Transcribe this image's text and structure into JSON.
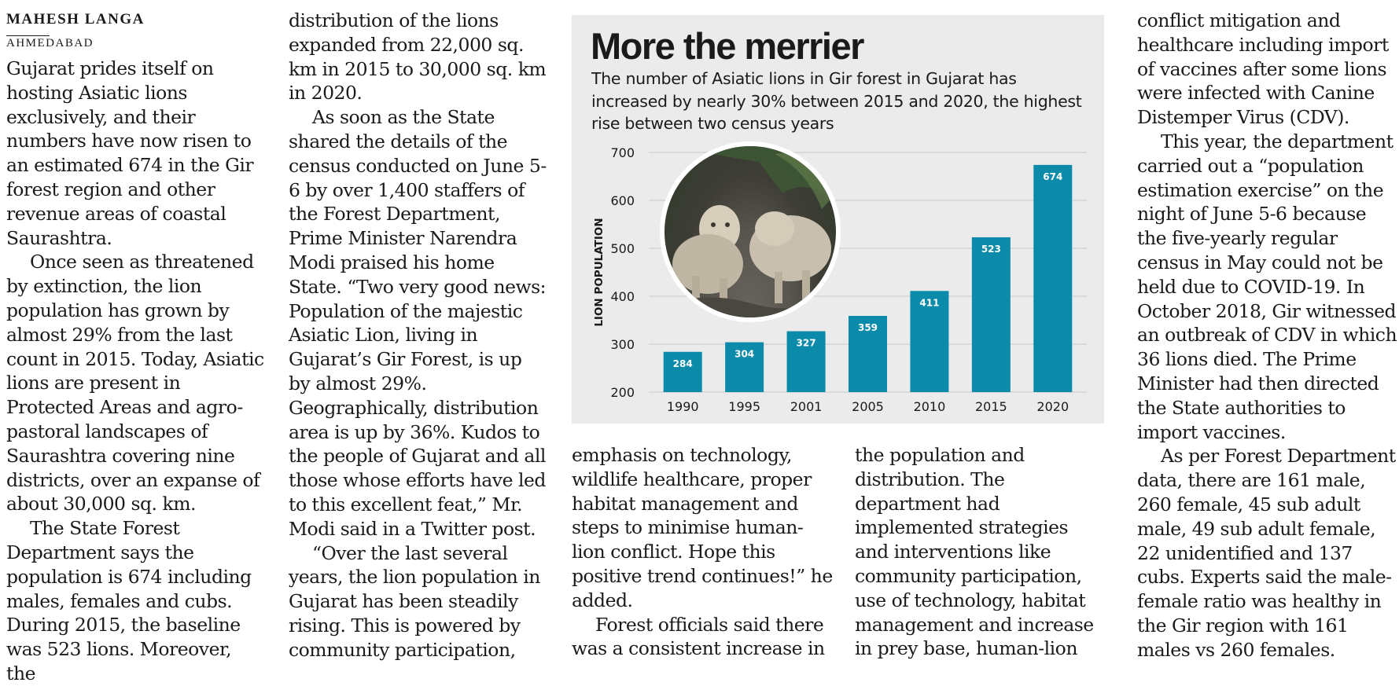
{
  "byline": {
    "author": "MAHESH LANGA",
    "dateline": "AHMEDABAD"
  },
  "article": {
    "col1": [
      "Gujarat prides itself on hosting Asiatic lions exclusively, and their numbers have now risen to an estimated 674 in the Gir forest region and other revenue areas of coastal Saurashtra.",
      "Once seen as threatened by extinction, the lion population has grown by almost 29% from the last count in 2015. Today, Asiatic lions are present in Protected Areas and agro-pastoral landscapes of Saurashtra covering nine districts, over an expanse of about 30,000 sq. km.",
      "The State Forest Department says the population is 674 including males, females and cubs. During 2015, the baseline was 523 lions. Moreover, the"
    ],
    "col2": [
      "distribution of the lions expanded from 22,000 sq. km in 2015 to 30,000 sq. km in 2020.",
      "As soon as the State shared the details of the census conducted on June 5-6 by over 1,400 staffers of the Forest Department, Prime Minister Narendra Modi praised his home State. “Two very good news: Population of the majestic Asiatic Lion, living in Gujarat’s Gir Forest, is up by almost 29%. Geographically, distribution area is up by 36%. Kudos to the people of Gujarat and all those whose efforts have led to this excellent feat,” Mr. Modi said in a Twitter post.",
      "“Over the last several years, the lion population in Gujarat has been steadily rising. This is powered by community participation,"
    ],
    "col3": [
      "emphasis on technology, wildlife healthcare, proper habitat management and steps to minimise human-lion conflict. Hope this positive trend continues!” he added.",
      "Forest officials said there was a consistent increase in"
    ],
    "col4": [
      "the population and distribution. The department had implemented strategies and interventions like community participation, use of technology, habitat management and increase in prey base, human-lion"
    ],
    "col5": [
      "conflict mitigation and healthcare including import of vaccines after some lions were infected with Canine Distemper Virus (CDV).",
      "This year, the department carried out a “population estimation exercise” on the night of June 5-6 because the five-yearly regular census in May could not be held due to COVID-19. In October 2018, Gir witnessed an outbreak of CDV in which 36 lions died. The Prime Minister had then directed the State authorities to import vaccines.",
      "As per Forest Department data, there are 161 male, 260 female, 45 sub adult male, 49 sub adult female, 22 unidentified and 137 cubs. Experts said the male-female ratio was healthy in the Gir region with 161 males vs 260 females."
    ]
  },
  "graphic": {
    "title": "More the merrier",
    "subtitle": "The number of Asiatic lions in Gir forest in Gujarat has increased by nearly 30% between 2015 and 2020, the highest rise between two census years",
    "photo_icon": "lion-photo",
    "colors": {
      "bar": "#0b8aaa",
      "background": "#ebebeb",
      "grid": "#c8c8c8"
    }
  },
  "chart_data": {
    "type": "bar",
    "title": "More the merrier",
    "categories": [
      "1990",
      "1995",
      "2001",
      "2005",
      "2010",
      "2015",
      "2020"
    ],
    "values": [
      284,
      304,
      327,
      359,
      411,
      523,
      674
    ],
    "xlabel": "",
    "ylabel": "LION POPULATION",
    "ylim": [
      200,
      700
    ],
    "yticks": [
      200,
      300,
      400,
      500,
      600,
      700
    ],
    "grid": true,
    "data_labels": true
  }
}
